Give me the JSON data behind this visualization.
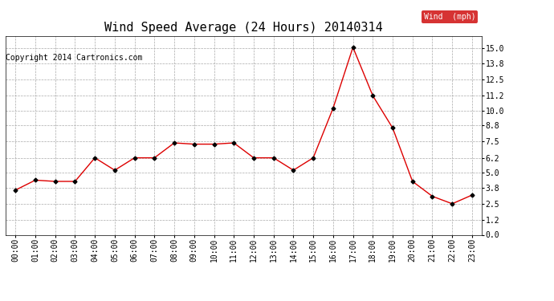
{
  "title": "Wind Speed Average (24 Hours) 20140314",
  "copyright": "Copyright 2014 Cartronics.com",
  "legend_label": "Wind  (mph)",
  "hours": [
    "00:00",
    "01:00",
    "02:00",
    "03:00",
    "04:00",
    "05:00",
    "06:00",
    "07:00",
    "08:00",
    "09:00",
    "10:00",
    "11:00",
    "12:00",
    "13:00",
    "14:00",
    "15:00",
    "16:00",
    "17:00",
    "18:00",
    "19:00",
    "20:00",
    "21:00",
    "22:00",
    "23:00"
  ],
  "wind_values": [
    3.6,
    4.4,
    4.3,
    4.3,
    6.2,
    5.2,
    6.2,
    6.2,
    7.4,
    7.3,
    7.3,
    7.4,
    6.2,
    6.2,
    5.2,
    6.2,
    10.2,
    15.1,
    11.2,
    8.6,
    4.3,
    3.1,
    2.5,
    3.2
  ],
  "line_color": "#dd0000",
  "marker_color": "black",
  "marker": "D",
  "marker_size": 2.5,
  "ylim": [
    0.0,
    16.0
  ],
  "yticks": [
    0.0,
    1.2,
    2.5,
    3.8,
    5.0,
    6.2,
    7.5,
    8.8,
    10.0,
    11.2,
    12.5,
    13.8,
    15.0
  ],
  "bg_color": "#ffffff",
  "grid_color": "#aaaaaa",
  "title_fontsize": 11,
  "copyright_fontsize": 7,
  "tick_fontsize": 7,
  "legend_bg": "#cc0000",
  "legend_text_color": "white",
  "legend_fontsize": 7
}
